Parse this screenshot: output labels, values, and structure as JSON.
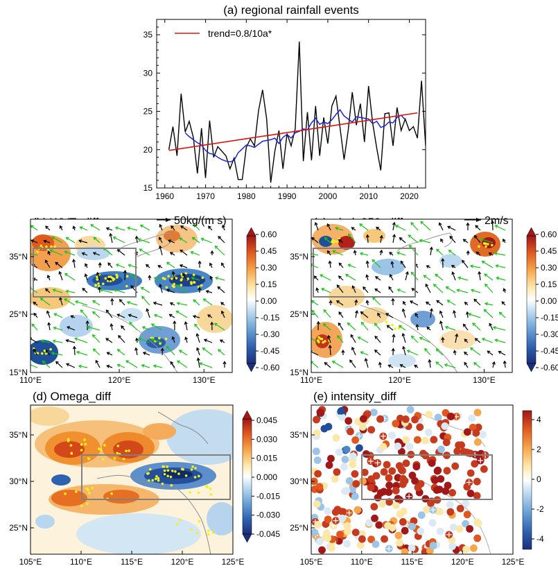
{
  "colors": {
    "trend": "#e01010",
    "series": "#000000",
    "smooth": "#1a24d6",
    "region_box": "#808080",
    "vector_sig": "#19c419",
    "vector_nonsig": "#000000",
    "stipple": "#f2f21a"
  },
  "chart_data": [
    {
      "id": "a",
      "type": "line",
      "title": "(a) regional rainfall events",
      "legend": {
        "label": "trend=0.8/10a*",
        "placement": "top-left"
      },
      "xlim": [
        1958,
        2024
      ],
      "ylim": [
        15,
        37
      ],
      "xticks": [
        1960,
        1970,
        1980,
        1990,
        2000,
        2010,
        2020
      ],
      "yticks": [
        15,
        20,
        25,
        30,
        35
      ],
      "x_start": 1961,
      "values": [
        20.0,
        23.0,
        19.2,
        27.3,
        22.3,
        23.7,
        21.6,
        16.9,
        22.8,
        16.3,
        23.8,
        19.0,
        20.4,
        19.8,
        19.2,
        17.5,
        18.9,
        16.1,
        16.1,
        20.3,
        21.4,
        20.5,
        25.1,
        27.8,
        24.0,
        15.7,
        19.8,
        22.5,
        17.5,
        22.1,
        20.5,
        22.7,
        34.1,
        18.5,
        24.9,
        18.6,
        25.7,
        19.2,
        24.2,
        20.8,
        25.7,
        27.0,
        22.9,
        18.7,
        22.5,
        27.5,
        23.2,
        26.0,
        21.0,
        28.3,
        23.5,
        20.2,
        17.3,
        24.7,
        24.8,
        20.5,
        25.5,
        22.5,
        24.0,
        22.5,
        23.0,
        21.5,
        29.0,
        20.5,
        27.7
      ],
      "series": [
        {
          "name": "trend=0.8/10a*",
          "style": "red-straight",
          "x": [
            1961,
            2022
          ],
          "y": [
            19.9,
            24.8
          ]
        },
        {
          "name": "",
          "style": "blue-running-mean",
          "x_start": 1965,
          "values": [
            22.2,
            21.7,
            21.3,
            20.9,
            20.6,
            19.9,
            19.5,
            19.4,
            19.0,
            18.7,
            18.5,
            18.4,
            18.6,
            19.6,
            20.1,
            20.6,
            20.5,
            20.3,
            20.7,
            21.1,
            21.2,
            21.3,
            21.5,
            20.8,
            21.6,
            22.0,
            21.5,
            22.2,
            22.4,
            22.7,
            22.6,
            23.5,
            24.1,
            23.3,
            23.6,
            23.4,
            23.9,
            24.6,
            25.2,
            24.4,
            24.0,
            23.6,
            24.3,
            24.2,
            24.1,
            24.0,
            23.4,
            23.7,
            22.9,
            23.1,
            23.6,
            23.5,
            24.2,
            24.5,
            23.9
          ]
        }
      ]
    },
    {
      "id": "b",
      "type": "heatmap",
      "title": "(b) WVT_diff",
      "vector_key": "50kg/(m s)",
      "xticks": [
        "110°E",
        "120°E",
        "130°E"
      ],
      "yticks": [
        "15°N",
        "25°N",
        "35°N"
      ],
      "colorbar": {
        "ticks": [
          "0.60",
          "0.45",
          "0.30",
          "0.15",
          "0.00",
          "-0.15",
          "-0.30",
          "-0.45",
          "-0.60"
        ]
      }
    },
    {
      "id": "c",
      "type": "heatmap",
      "title": "(c) wind_850_diff",
      "vector_key": "2m/s",
      "xticks": [
        "110°E",
        "120°E",
        "130°E"
      ],
      "yticks": [
        "15°N",
        "25°N",
        "35°N"
      ],
      "colorbar": {
        "ticks": [
          "0.60",
          "0.45",
          "0.30",
          "0.15",
          "0.00",
          "-0.15",
          "-0.30",
          "-0.45",
          "-0.60"
        ]
      }
    },
    {
      "id": "d",
      "type": "heatmap",
      "title": "(d) Omega_diff",
      "xticks": [
        "105°E",
        "110°E",
        "115°E",
        "120°E",
        "125°E"
      ],
      "yticks": [
        "25°N",
        "30°N",
        "35°N"
      ],
      "colorbar": {
        "ticks": [
          "0.045",
          "0.030",
          "0.015",
          "0.000",
          "-0.015",
          "-0.030",
          "-0.045"
        ]
      }
    },
    {
      "id": "e",
      "type": "scatter",
      "title": "(e) intensity_diff",
      "xticks": [
        "105°E",
        "110°E",
        "115°E",
        "120°E",
        "125°E"
      ],
      "yticks": [
        "25°N",
        "30°N",
        "35°N"
      ],
      "colorbar": {
        "ticks": [
          "4",
          "2",
          "0",
          "-2",
          "-4"
        ]
      }
    }
  ]
}
